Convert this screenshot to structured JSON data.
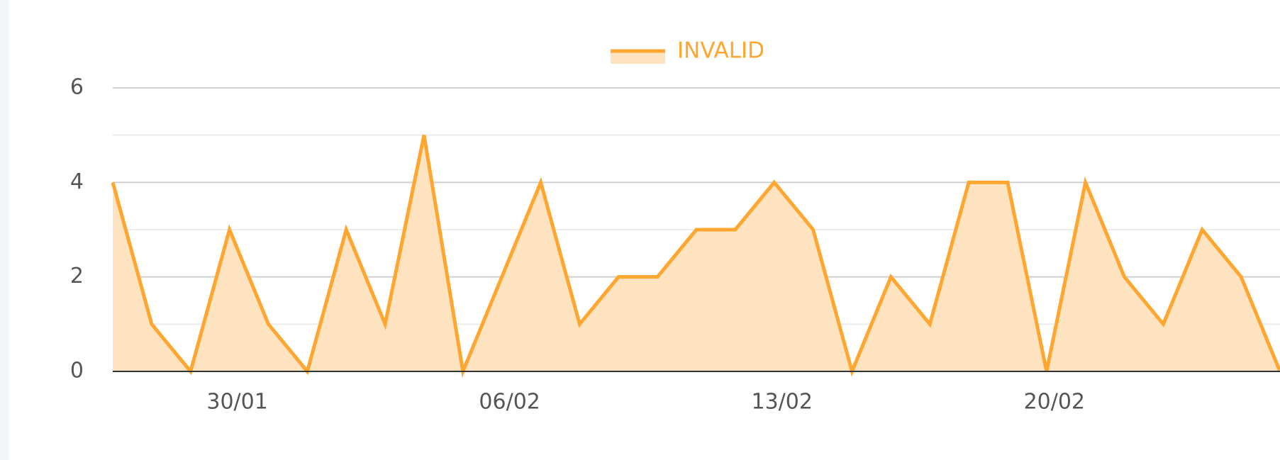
{
  "chart_data": {
    "type": "area",
    "legend": "top",
    "series": [
      {
        "name": "INVALID",
        "color": "#ffa630",
        "fill": "#fde3c0",
        "values": [
          4,
          1,
          0,
          3,
          1,
          0,
          3,
          1,
          5,
          0,
          2,
          4,
          1,
          2,
          2,
          3,
          3,
          4,
          3,
          0,
          2,
          1,
          4,
          4,
          0,
          4,
          2,
          1,
          3,
          2,
          0
        ]
      }
    ],
    "categories": [
      null,
      null,
      null,
      "30/01",
      null,
      null,
      null,
      null,
      null,
      null,
      "06/02",
      null,
      null,
      null,
      null,
      null,
      null,
      "13/02",
      null,
      null,
      null,
      null,
      null,
      null,
      "20/02",
      null,
      null,
      null,
      null,
      null,
      null
    ],
    "ylim": [
      0,
      6
    ],
    "yticks": [
      0,
      2,
      4,
      6
    ],
    "minor_yticks": [
      1,
      3,
      5
    ],
    "grid": true
  }
}
